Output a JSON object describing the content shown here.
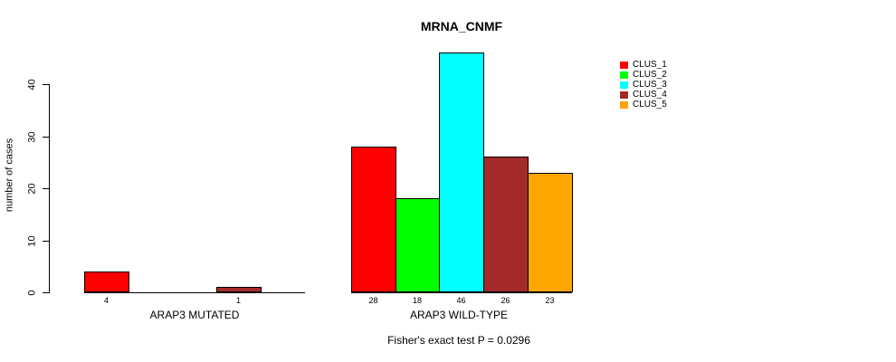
{
  "chart_data": {
    "type": "bar",
    "title": "MRNA_CNMF",
    "ylabel": "number of cases",
    "ylim": [
      0,
      46
    ],
    "yticks": [
      0,
      10,
      20,
      30,
      40
    ],
    "grid": false,
    "categories": [
      "CLUS_1",
      "CLUS_2",
      "CLUS_3",
      "CLUS_4",
      "CLUS_5"
    ],
    "colors": [
      "#ff0000",
      "#00ff00",
      "#00ffff",
      "#a52a2a",
      "#ffa500"
    ],
    "groups": [
      {
        "label": "ARAP3 MUTATED",
        "values": [
          4,
          0,
          0,
          1,
          0
        ],
        "value_labels": [
          "4",
          "",
          "",
          "1",
          ""
        ]
      },
      {
        "label": "ARAP3 WILD-TYPE",
        "values": [
          28,
          18,
          46,
          26,
          23
        ],
        "value_labels": [
          "28",
          "18",
          "46",
          "26",
          "23"
        ]
      }
    ],
    "legend": {
      "position": "top-right",
      "entries": [
        "CLUS_1",
        "CLUS_2",
        "CLUS_3",
        "CLUS_4",
        "CLUS_5"
      ]
    },
    "annotation": "Fisher's exact test P = 0.0296"
  }
}
